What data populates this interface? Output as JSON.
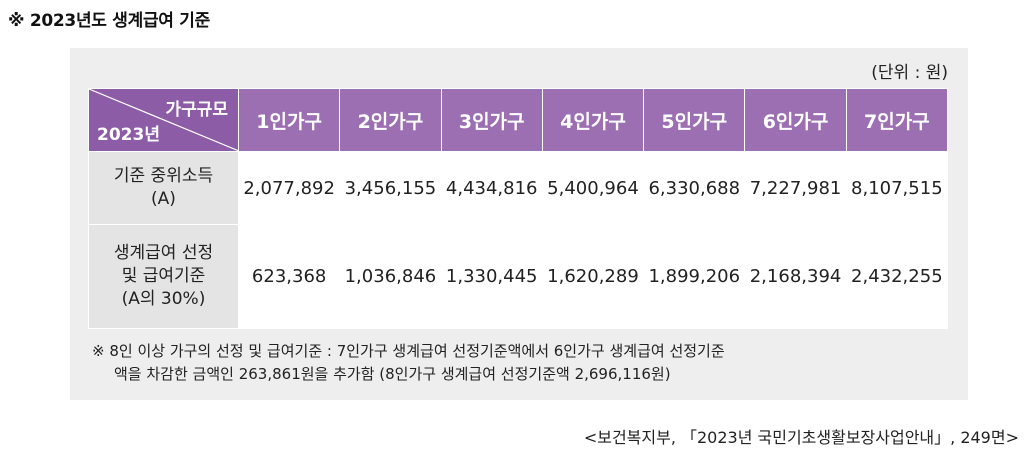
{
  "title": "※ 2023년도 생계급여 기준",
  "unit": "(단위 : 원)",
  "table": {
    "corner_top": "가구규모",
    "corner_bottom": "2023년",
    "columns": [
      "1인가구",
      "2인가구",
      "3인가구",
      "4인가구",
      "5인가구",
      "6인가구",
      "7인가구"
    ],
    "rows": [
      {
        "label_line1": "기준 중위소득",
        "label_line2": "(A)",
        "values": [
          "2,077,892",
          "3,456,155",
          "4,434,816",
          "5,400,964",
          "6,330,688",
          "7,227,981",
          "8,107,515"
        ]
      },
      {
        "label_line1": "생계급여 선정",
        "label_line2": "및 급여기준",
        "label_line3": "(A의 30%)",
        "values": [
          "623,368",
          "1,036,846",
          "1,330,445",
          "1,620,289",
          "1,899,206",
          "2,168,394",
          "2,432,255"
        ]
      }
    ]
  },
  "note_line1": "※ 8인 이상 가구의 선정 및 급여기준 : 7인가구 생계급여 선정기준액에서 6인가구 생계급여 선정기준",
  "note_line2": "액을 차감한 금액인 263,861원을 추가함 (8인가구 생계급여 선정기준액 2,696,116원)",
  "source": "<보건복지부, 「2023년 국민기초생활보장사업안내」, 249면>"
}
